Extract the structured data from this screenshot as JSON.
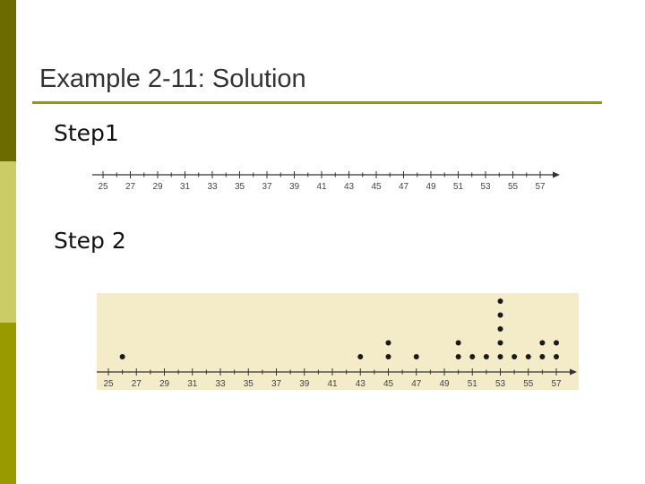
{
  "slide": {
    "title": "Example 2-11: Solution",
    "step1_label": "Step1",
    "step2_label": "Step 2",
    "colors": {
      "bar_dark": "#6b6b00",
      "bar_light": "#cccc66",
      "bar_mid": "#999900",
      "accent": "#999900",
      "panel_bg": "#f4ecc8"
    }
  },
  "chart_data": [
    {
      "type": "scatter",
      "subtype": "number-line",
      "title": "",
      "xlabel": "",
      "ylabel": "",
      "ticks": [
        25,
        27,
        29,
        31,
        33,
        35,
        37,
        39,
        41,
        43,
        45,
        47,
        49,
        51,
        53,
        55,
        57
      ],
      "tick_labels": [
        "25",
        "27",
        "29",
        "31",
        "33",
        "35",
        "37",
        "39",
        "41",
        "43",
        "45",
        "47",
        "49",
        "51",
        "53",
        "55",
        "57"
      ],
      "xlim": [
        25,
        57
      ],
      "grid": false
    },
    {
      "type": "scatter",
      "subtype": "dot-plot",
      "title": "",
      "xlabel": "",
      "ylabel": "",
      "ticks": [
        25,
        27,
        29,
        31,
        33,
        35,
        37,
        39,
        41,
        43,
        45,
        47,
        49,
        51,
        53,
        55,
        57
      ],
      "tick_labels": [
        "25",
        "27",
        "29",
        "31",
        "33",
        "35",
        "37",
        "39",
        "41",
        "43",
        "45",
        "47",
        "49",
        "51",
        "53",
        "55",
        "57"
      ],
      "xlim": [
        25,
        57
      ],
      "grid": false,
      "points": [
        {
          "x": 26,
          "count": 1
        },
        {
          "x": 43,
          "count": 1
        },
        {
          "x": 45,
          "count": 2
        },
        {
          "x": 47,
          "count": 1
        },
        {
          "x": 50,
          "count": 2
        },
        {
          "x": 51,
          "count": 1
        },
        {
          "x": 52,
          "count": 1
        },
        {
          "x": 53,
          "count": 5
        },
        {
          "x": 54,
          "count": 1
        },
        {
          "x": 55,
          "count": 1
        },
        {
          "x": 56,
          "count": 2
        },
        {
          "x": 57,
          "count": 2
        }
      ]
    }
  ]
}
